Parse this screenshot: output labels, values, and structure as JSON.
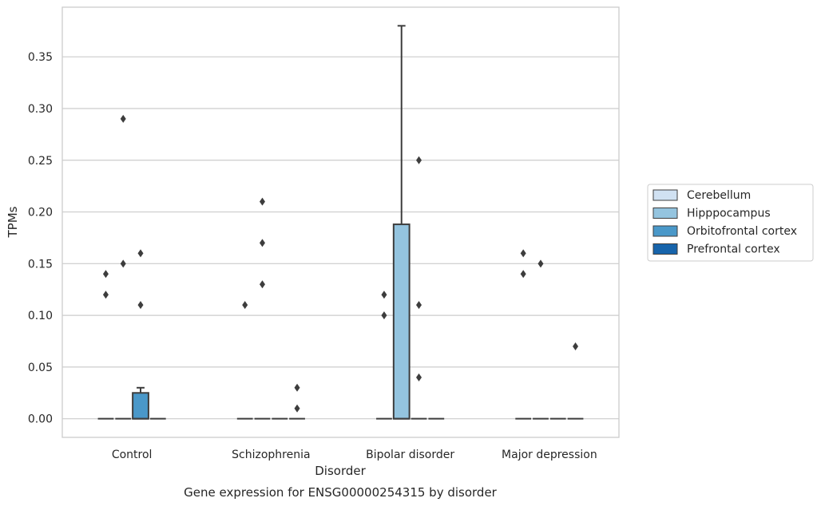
{
  "chart_data": {
    "type": "box",
    "xlabel": "Disorder",
    "ylabel": "TPMs",
    "caption": "Gene expression for ENSG00000254315 by disorder",
    "ylim": [
      -0.018,
      0.398
    ],
    "yticks": [
      "0.00",
      "0.05",
      "0.10",
      "0.15",
      "0.20",
      "0.25",
      "0.30",
      "0.35"
    ],
    "grid": "horizontal",
    "legend_position": "right",
    "categories": [
      "Control",
      "Schizophrenia",
      "Bipolar disorder",
      "Major depression"
    ],
    "series": [
      {
        "name": "Cerebellum",
        "color": "#d0e1f2",
        "boxes": [
          {
            "q1": 0,
            "median": 0,
            "q3": 0,
            "whisker_low": 0,
            "whisker_high": 0,
            "outliers": [
              0.12,
              0.14
            ]
          },
          {
            "q1": 0,
            "median": 0,
            "q3": 0,
            "whisker_low": 0,
            "whisker_high": 0,
            "outliers": [
              0.11
            ]
          },
          {
            "q1": 0,
            "median": 0,
            "q3": 0,
            "whisker_low": 0,
            "whisker_high": 0,
            "outliers": [
              0.1,
              0.12
            ]
          },
          {
            "q1": 0,
            "median": 0,
            "q3": 0,
            "whisker_low": 0,
            "whisker_high": 0,
            "outliers": [
              0.14,
              0.16
            ]
          }
        ]
      },
      {
        "name": "Hipppocampus",
        "color": "#94c4df",
        "boxes": [
          {
            "q1": 0,
            "median": 0,
            "q3": 0,
            "whisker_low": 0,
            "whisker_high": 0,
            "outliers": [
              0.15,
              0.29
            ]
          },
          {
            "q1": 0,
            "median": 0,
            "q3": 0,
            "whisker_low": 0,
            "whisker_high": 0,
            "outliers": [
              0.13,
              0.17,
              0.21
            ]
          },
          {
            "q1": 0,
            "median": 0,
            "q3": 0.188,
            "whisker_low": 0,
            "whisker_high": 0.38,
            "outliers": []
          },
          {
            "q1": 0,
            "median": 0,
            "q3": 0,
            "whisker_low": 0,
            "whisker_high": 0,
            "outliers": [
              0.15
            ]
          }
        ]
      },
      {
        "name": "Orbitofrontal cortex",
        "color": "#4a98c9",
        "boxes": [
          {
            "q1": 0,
            "median": 0,
            "q3": 0.025,
            "whisker_low": 0,
            "whisker_high": 0.03,
            "outliers": [
              0.11,
              0.16
            ]
          },
          {
            "q1": 0,
            "median": 0,
            "q3": 0,
            "whisker_low": 0,
            "whisker_high": 0,
            "outliers": []
          },
          {
            "q1": 0,
            "median": 0,
            "q3": 0,
            "whisker_low": 0,
            "whisker_high": 0,
            "outliers": [
              0.04,
              0.11,
              0.25
            ]
          },
          {
            "q1": 0,
            "median": 0,
            "q3": 0,
            "whisker_low": 0,
            "whisker_high": 0,
            "outliers": []
          }
        ]
      },
      {
        "name": "Prefrontal cortex",
        "color": "#1764ab",
        "boxes": [
          {
            "q1": 0,
            "median": 0,
            "q3": 0,
            "whisker_low": 0,
            "whisker_high": 0,
            "outliers": []
          },
          {
            "q1": 0,
            "median": 0,
            "q3": 0,
            "whisker_low": 0,
            "whisker_high": 0,
            "outliers": [
              0.01,
              0.03
            ]
          },
          {
            "q1": 0,
            "median": 0,
            "q3": 0,
            "whisker_low": 0,
            "whisker_high": 0,
            "outliers": []
          },
          {
            "q1": 0,
            "median": 0,
            "q3": 0,
            "whisker_low": 0,
            "whisker_high": 0,
            "outliers": [
              0.07
            ]
          }
        ]
      }
    ]
  }
}
